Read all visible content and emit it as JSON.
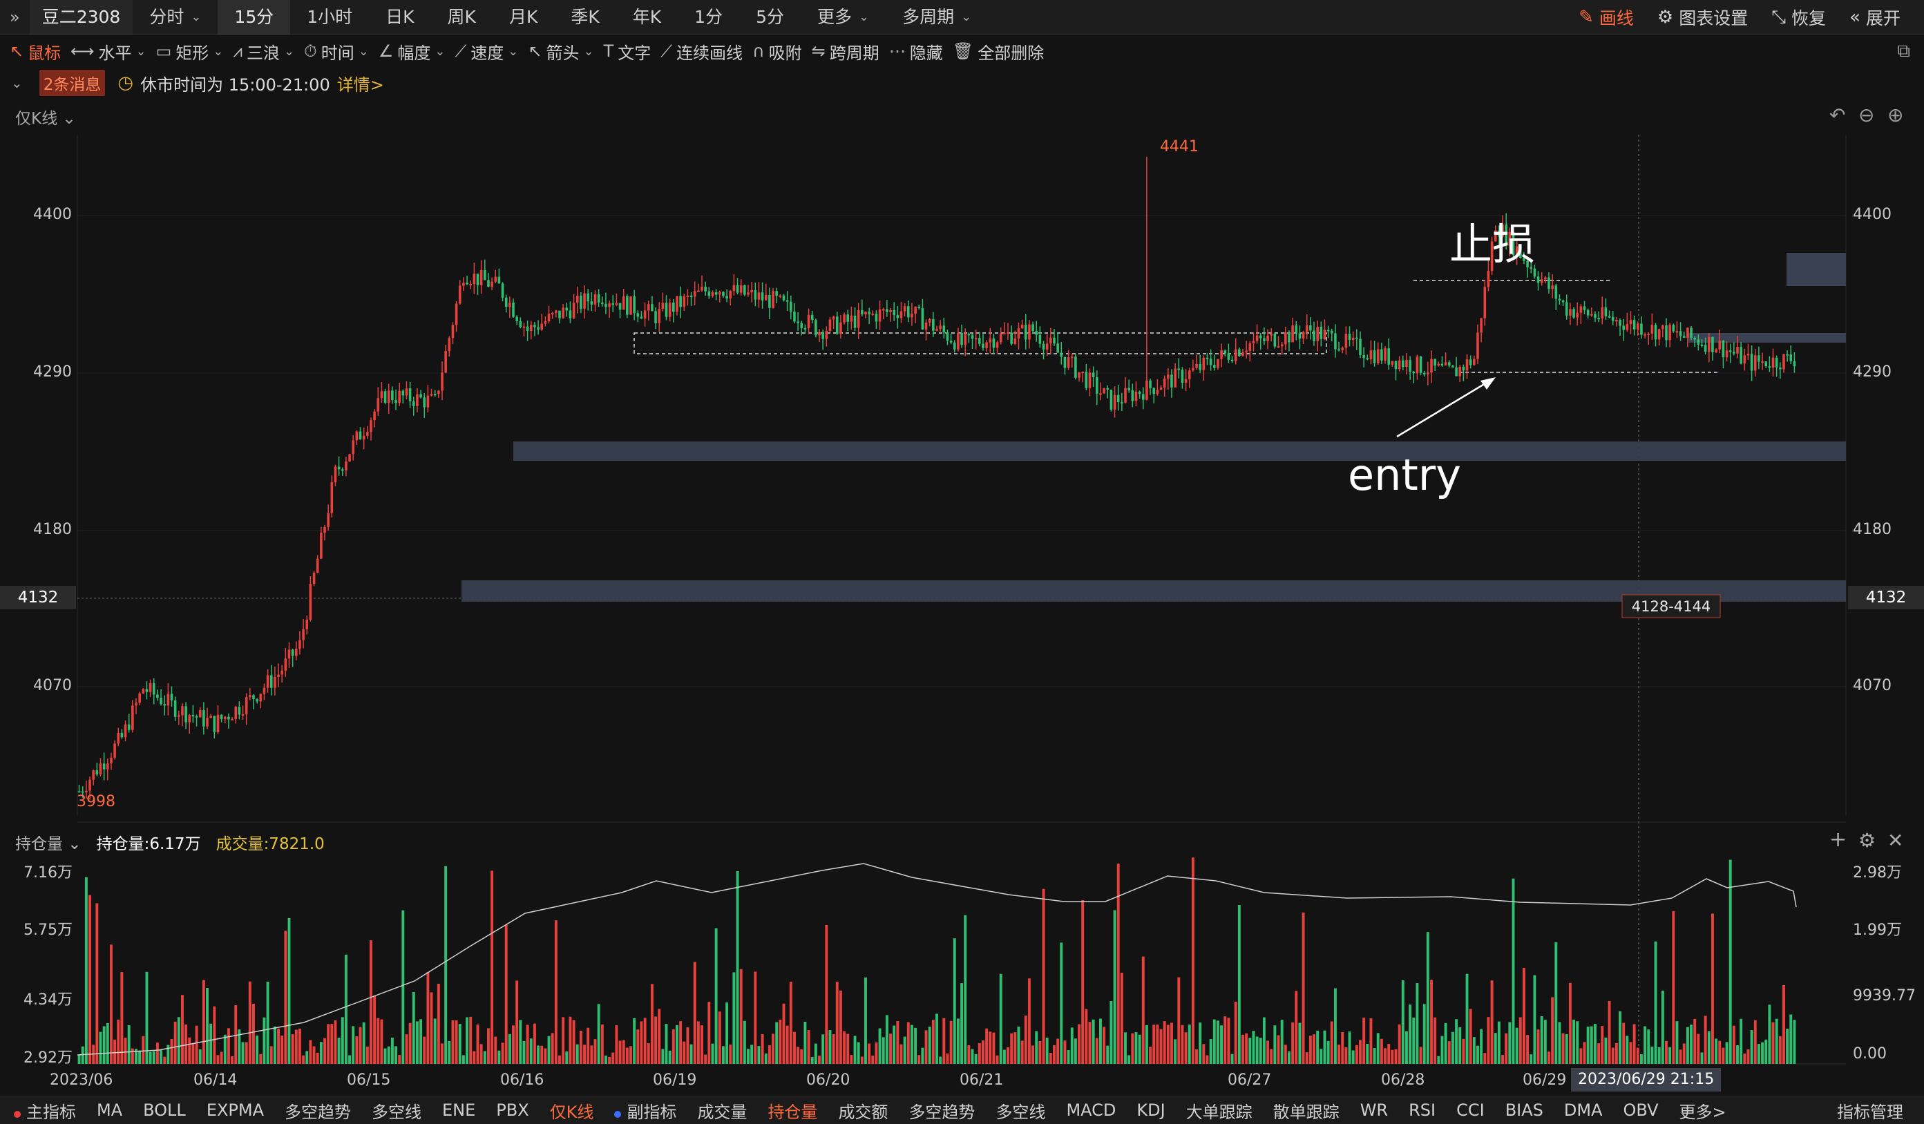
{
  "toolbar": {
    "symbol": "豆二2308",
    "tabs": [
      {
        "label": "分时",
        "chev": true
      },
      {
        "label": "15分",
        "active": true
      },
      {
        "label": "1小时"
      },
      {
        "label": "日K"
      },
      {
        "label": "周K"
      },
      {
        "label": "月K"
      },
      {
        "label": "季K"
      },
      {
        "label": "年K"
      },
      {
        "label": "1分"
      },
      {
        "label": "5分"
      },
      {
        "label": "更多",
        "chev": true
      },
      {
        "label": "多周期",
        "chev": true
      }
    ],
    "right": {
      "draw": "画线",
      "settings": "图表设置",
      "restore": "恢复",
      "expand": "展开"
    }
  },
  "drawtools": [
    "鼠标",
    "水平",
    "矩形",
    "三浪",
    "时间",
    "幅度",
    "速度",
    "箭头",
    "文字",
    "连续画线",
    "吸附",
    "跨周期",
    "隐藏",
    "全部删除"
  ],
  "msg": {
    "count": "2条消息",
    "text": "休市时间为 15:00-21:00",
    "detail": "详情>"
  },
  "kline_selector": "仅K线",
  "price_axis": {
    "ticks": [
      "4400",
      "4290",
      "4180",
      "4070"
    ],
    "current": "4132",
    "high_label": "4441",
    "low_label": "3998",
    "zone_label": "4128-4144"
  },
  "annotations": {
    "stop": "止损",
    "entry": "entry"
  },
  "volume_panel": {
    "selector": "持仓量",
    "oi_label": "持仓量:6.17万",
    "vol_label": "成交量:7821.0",
    "left_ticks": [
      "7.16万",
      "5.75万",
      "4.34万",
      "2.92万"
    ],
    "right_ticks": [
      "2.98万",
      "1.99万",
      "9939.77",
      "0.00"
    ]
  },
  "date_axis": [
    "2023/06",
    "06/14",
    "06/15",
    "06/16",
    "06/19",
    "06/20",
    "06/21",
    "06/27",
    "06/28",
    "06/29"
  ],
  "crosshair_date": "2023/06/29 21:15",
  "bottom_bar": [
    "主指标",
    "MA",
    "BOLL",
    "EXPMA",
    "多空趋势",
    "多空线",
    "ENE",
    "PBX",
    "仅K线",
    "副指标",
    "成交量",
    "持仓量",
    "成交额",
    "多空趋势",
    "多空线",
    "MACD",
    "KDJ",
    "大单跟踪",
    "散单跟踪",
    "WR",
    "RSI",
    "CCI",
    "BIAS",
    "DMA",
    "OBV",
    "更多>",
    "指标管理"
  ],
  "colors": {
    "up": "#e8413c",
    "down": "#2fbf71",
    "accent": "#ff6a3c",
    "zone": "#3a4152"
  }
}
